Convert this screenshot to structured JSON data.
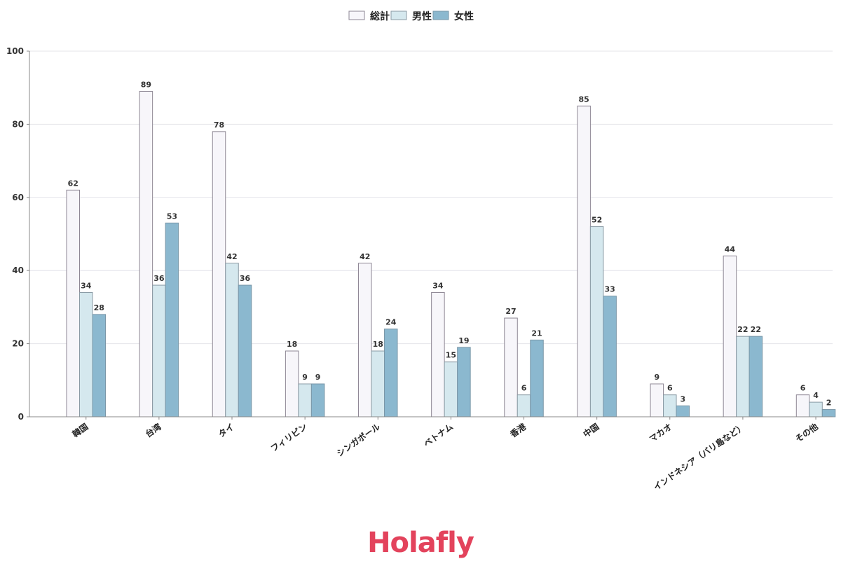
{
  "chart_data": {
    "type": "bar",
    "categories": [
      "韓国",
      "台湾",
      "タイ",
      "フィリピン",
      "シンガポール",
      "ベトナム",
      "香港",
      "中国",
      "マカオ",
      "インドネシア（バリ島など）",
      "その他"
    ],
    "series": [
      {
        "name": "総計",
        "values": [
          62,
          89,
          78,
          18,
          42,
          34,
          27,
          85,
          9,
          44,
          6
        ],
        "color": "#f7f6fa",
        "stroke": "#8e8794"
      },
      {
        "name": "男性",
        "values": [
          34,
          36,
          42,
          9,
          18,
          15,
          6,
          52,
          6,
          22,
          4
        ],
        "color": "#d5e8ee",
        "stroke": "#8a9aa4"
      },
      {
        "name": "女性",
        "values": [
          28,
          53,
          36,
          9,
          24,
          19,
          21,
          33,
          3,
          22,
          2
        ],
        "color": "#8bb8cf",
        "stroke": "#7a97a8"
      }
    ],
    "yticks": [
      0,
      20,
      40,
      60,
      80,
      100
    ],
    "ylim": [
      0,
      100
    ],
    "grid": true,
    "legend_position": "top-center"
  },
  "logo": {
    "text": "Holafly",
    "color": "#e3435c"
  }
}
